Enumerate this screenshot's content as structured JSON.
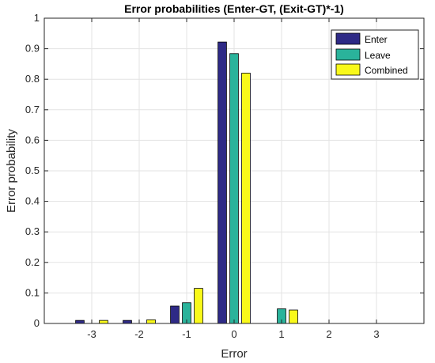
{
  "chart_data": {
    "type": "bar",
    "title": "Error probabilities (Enter-GT, (Exit-GT)*-1)",
    "xlabel": "Error",
    "ylabel": "Error probability",
    "categories": [
      -3,
      -2,
      -1,
      0,
      1,
      2,
      3
    ],
    "x_tick_labels": [
      "-3",
      "-2",
      "-1",
      "0",
      "1",
      "2",
      "3"
    ],
    "y_tick_labels": [
      "0",
      "0.1",
      "0.2",
      "0.3",
      "0.4",
      "0.5",
      "0.6",
      "0.7",
      "0.8",
      "0.9",
      "1"
    ],
    "xlim": [
      -4,
      4
    ],
    "ylim": [
      0,
      1
    ],
    "grid": true,
    "legend_position": "top-right",
    "series": [
      {
        "name": "Enter",
        "color": "#2e2a86",
        "values": [
          0.01,
          0.01,
          0.057,
          0.922,
          0,
          0,
          0
        ]
      },
      {
        "name": "Leave",
        "color": "#2ab39b",
        "values": [
          0,
          0,
          0.068,
          0.884,
          0.048,
          0,
          0
        ]
      },
      {
        "name": "Combined",
        "color": "#f9f91a",
        "values": [
          0.01,
          0.012,
          0.115,
          0.82,
          0.044,
          0,
          0
        ]
      }
    ]
  }
}
